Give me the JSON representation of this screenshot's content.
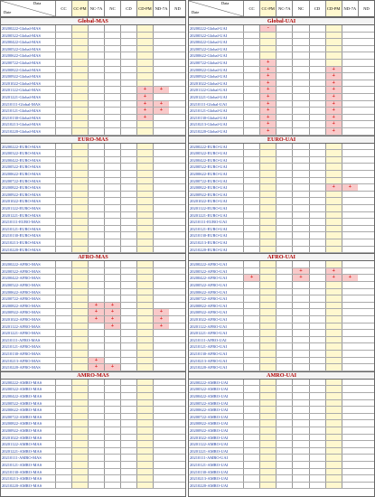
{
  "columns": [
    "CC",
    "CC-PM",
    "NC-7A",
    "NC",
    "CD",
    "CD-PM",
    "ND-7A",
    "ND"
  ],
  "corner_label_top": "Data",
  "corner_label_bottom": "Date",
  "left": [
    {
      "title": "Global-MAS",
      "rows": [
        [
          "20200222-Global-MAS",
          "",
          "",
          "",
          "",
          "",
          "",
          ""
        ],
        [
          "20200322-Global-MAS",
          "",
          "",
          "",
          "",
          "",
          "",
          ""
        ],
        [
          "20200422-Global-MAS",
          "",
          "",
          "",
          "",
          "",
          "",
          ""
        ],
        [
          "20200522-Global-MAS",
          "",
          "",
          "",
          "",
          "",
          "",
          ""
        ],
        [
          "20200622-Global-MAS",
          "",
          "",
          "",
          "",
          "",
          "",
          ""
        ],
        [
          "20200722-Global-MAS",
          "",
          "",
          "",
          "",
          "",
          "",
          ""
        ],
        [
          "20200822-Global-MAS",
          "",
          "",
          "",
          "",
          "",
          "",
          ""
        ],
        [
          "20200922-Global-MAS",
          "",
          "",
          "",
          "",
          "",
          "",
          ""
        ],
        [
          "20201022-Global-MAS",
          "",
          "",
          "",
          "",
          "",
          "",
          ""
        ],
        [
          "20201122-Global-MAS",
          "",
          "",
          "",
          "",
          "",
          "+",
          "+"
        ],
        [
          "20201221-Global-MAS",
          "",
          "",
          "",
          "",
          "",
          "+",
          ""
        ],
        [
          "20210111-Global-MAS",
          "",
          "",
          "",
          "",
          "",
          "+",
          "+"
        ],
        [
          "20210121-Global-MAS",
          "",
          "",
          "",
          "",
          "",
          "+",
          "+"
        ],
        [
          "20210130-Global-MAS",
          "",
          "",
          "",
          "",
          "",
          "+",
          ""
        ],
        [
          "20210213-Global-MAS",
          "",
          "",
          "",
          "",
          "",
          "",
          ""
        ],
        [
          "20210220-Global-MAS",
          "",
          "",
          "",
          "",
          "",
          "",
          ""
        ]
      ]
    },
    {
      "title": "EURO-MAS",
      "rows": [
        [
          "20200222-EURO-MAS",
          "",
          "",
          "",
          "",
          "",
          "",
          ""
        ],
        [
          "20200322-EURO-MAS",
          "",
          "",
          "",
          "",
          "",
          "",
          ""
        ],
        [
          "20200422-EURO-MAS",
          "",
          "",
          "",
          "",
          "",
          "",
          ""
        ],
        [
          "20200522-EURO-MAS",
          "",
          "",
          "",
          "",
          "",
          "",
          ""
        ],
        [
          "20200622-EURO-MAS",
          "",
          "",
          "",
          "",
          "",
          "",
          ""
        ],
        [
          "20200722-EURO-MAS",
          "",
          "",
          "",
          "",
          "",
          "",
          ""
        ],
        [
          "20200822-EURO-MAS",
          "",
          "",
          "",
          "",
          "",
          "",
          ""
        ],
        [
          "20200922-EURO-MAS",
          "",
          "",
          "",
          "",
          "",
          "",
          ""
        ],
        [
          "20201022-EURO-MAS",
          "",
          "",
          "",
          "",
          "",
          "",
          ""
        ],
        [
          "20201122-EURO-MAS",
          "",
          "",
          "",
          "",
          "",
          "",
          ""
        ],
        [
          "20201221-EURO-MAS",
          "",
          "",
          "",
          "",
          "",
          "",
          ""
        ],
        [
          "20210111-EURO-MAS",
          "",
          "",
          "",
          "",
          "",
          "",
          ""
        ],
        [
          "20210121-EURO-MAS",
          "",
          "",
          "",
          "",
          "",
          "",
          ""
        ],
        [
          "20210130-EURO-MAS",
          "",
          "",
          "",
          "",
          "",
          "",
          ""
        ],
        [
          "20210213-EURO-MAS",
          "",
          "",
          "",
          "",
          "",
          "",
          ""
        ],
        [
          "20210220-EURO-MAS",
          "",
          "",
          "",
          "",
          "",
          "",
          ""
        ]
      ]
    },
    {
      "title": "AFRO-MAS",
      "rows": [
        [
          "20200222-AFRO-MAS",
          "",
          "",
          "",
          "",
          "",
          "",
          ""
        ],
        [
          "20200322-AFRO-MAS",
          "",
          "",
          "",
          "",
          "",
          "",
          ""
        ],
        [
          "20200422-AFRO-MAS",
          "",
          "",
          "",
          "",
          "",
          "",
          ""
        ],
        [
          "20200522-AFRO-MAS",
          "",
          "",
          "",
          "",
          "",
          "",
          ""
        ],
        [
          "20200622-AFRO-MAS",
          "",
          "",
          "",
          "",
          "",
          "",
          ""
        ],
        [
          "20200722-AFRO-MAS",
          "",
          "",
          "",
          "",
          "",
          "",
          ""
        ],
        [
          "20200822-AFRO-MAS",
          "",
          "",
          "+",
          "+",
          "",
          "",
          ""
        ],
        [
          "20200922-AFRO-MAS",
          "",
          "",
          "+",
          "+",
          "",
          "",
          "+"
        ],
        [
          "20201022-AFRO-MAS",
          "",
          "",
          "+",
          "+",
          "",
          "",
          "+"
        ],
        [
          "20201122-AFRO-MAS",
          "",
          "",
          "",
          "+",
          "",
          "",
          "+"
        ],
        [
          "20201221-AFRO-MAS",
          "",
          "",
          "",
          "",
          "",
          "",
          ""
        ],
        [
          "20210111-AFRO-MAS",
          "",
          "",
          "",
          "",
          "",
          "",
          ""
        ],
        [
          "20210121-AFRO-MAS",
          "",
          "",
          "",
          "",
          "",
          "",
          ""
        ],
        [
          "20210130-AFRO-MAS",
          "",
          "",
          "",
          "",
          "",
          "",
          ""
        ],
        [
          "20210213-AFRO-MAS",
          "",
          "",
          "+",
          "",
          "",
          "",
          ""
        ],
        [
          "20210220-AFRO-MAS",
          "",
          "",
          "+",
          "+",
          "",
          "",
          ""
        ]
      ]
    },
    {
      "title": "AMRO-MAS",
      "rows": [
        [
          "20200222-AMRO-MAS",
          "",
          "",
          "",
          "",
          "",
          "",
          ""
        ],
        [
          "20200322-AMRO-MAS",
          "",
          "",
          "",
          "",
          "",
          "",
          ""
        ],
        [
          "20200422-AMRO-MAS",
          "",
          "",
          "",
          "",
          "",
          "",
          ""
        ],
        [
          "20200522-AMRO-MAS",
          "",
          "",
          "",
          "",
          "",
          "",
          ""
        ],
        [
          "20200622-AMRO-MAS",
          "",
          "",
          "",
          "",
          "",
          "",
          ""
        ],
        [
          "20200722-AMRO-MAS",
          "",
          "",
          "",
          "",
          "",
          "",
          ""
        ],
        [
          "20200822-AMRO-MAS",
          "",
          "",
          "",
          "",
          "",
          "",
          ""
        ],
        [
          "20200922-AMRO-MAS",
          "",
          "",
          "",
          "",
          "",
          "",
          ""
        ],
        [
          "20201022-AMRO-MAS",
          "",
          "",
          "",
          "",
          "",
          "",
          ""
        ],
        [
          "20201122-AMRO-MAS",
          "",
          "",
          "",
          "",
          "",
          "",
          ""
        ],
        [
          "20201221-AMRO-MAS",
          "",
          "",
          "",
          "",
          "",
          "",
          ""
        ],
        [
          "20210111-AMRO-MAS",
          "",
          "",
          "",
          "",
          "",
          "",
          ""
        ],
        [
          "20210121-AMRO-MAS",
          "",
          "",
          "",
          "",
          "",
          "",
          ""
        ],
        [
          "20210130-AMRO-MAS",
          "",
          "",
          "",
          "",
          "",
          "",
          ""
        ],
        [
          "20210213-AMRO-MAS",
          "",
          "",
          "",
          "",
          "",
          "",
          ""
        ],
        [
          "20210220-AMRO-MAS",
          "",
          "",
          "",
          "",
          "",
          "",
          ""
        ]
      ]
    }
  ],
  "right": [
    {
      "title": "Global-UAI",
      "rows": [
        [
          "20200222-Global-UAI",
          "",
          "-",
          "",
          "",
          "",
          "",
          ""
        ],
        [
          "20200322-Global-UAI",
          "",
          "",
          "",
          "",
          "",
          "",
          ""
        ],
        [
          "20200422-Global-UAI",
          "",
          "",
          "",
          "",
          "",
          "",
          ""
        ],
        [
          "20200522-Global-UAI",
          "",
          "",
          "",
          "",
          "",
          "",
          ""
        ],
        [
          "20200622-Global-UAI",
          "",
          "",
          "",
          "",
          "",
          "",
          ""
        ],
        [
          "20200722-Global-UAI",
          "",
          "+",
          "",
          "",
          "",
          "",
          ""
        ],
        [
          "20200822-Global-UAI",
          "",
          "+",
          "",
          "",
          "",
          "+",
          ""
        ],
        [
          "20200922-Global-UAI",
          "",
          "+",
          "",
          "",
          "",
          "+",
          ""
        ],
        [
          "20201022-Global-UAI",
          "",
          "+",
          "",
          "",
          "",
          "+",
          ""
        ],
        [
          "20201122-Global-UAI",
          "",
          "+",
          "",
          "",
          "",
          "+",
          ""
        ],
        [
          "20201221-Global-UAI",
          "",
          "+",
          "",
          "",
          "",
          "+",
          ""
        ],
        [
          "20210111-Global-UAI",
          "",
          "+",
          "",
          "",
          "",
          "+",
          ""
        ],
        [
          "20210121-Global-UAI",
          "",
          "+",
          "",
          "",
          "",
          "+",
          ""
        ],
        [
          "20210130-Global-UAI",
          "",
          "+",
          "",
          "",
          "",
          "+",
          ""
        ],
        [
          "20210213-Global-UAI",
          "",
          "+",
          "",
          "",
          "",
          "+",
          ""
        ],
        [
          "20210220-Global-UAI",
          "",
          "+",
          "",
          "",
          "",
          "+",
          ""
        ]
      ]
    },
    {
      "title": "EURO-UAI",
      "rows": [
        [
          "20200222-EURO-UAI",
          "",
          "",
          "",
          "",
          "",
          "",
          ""
        ],
        [
          "20200322-EURO-UAI",
          "",
          "",
          "",
          "",
          "",
          "",
          ""
        ],
        [
          "20200422-EURO-UAI",
          "",
          "",
          "",
          "",
          "",
          "",
          ""
        ],
        [
          "20200522-EURO-UAI",
          "",
          "",
          "",
          "",
          "",
          "",
          ""
        ],
        [
          "20200622-EURO-UAI",
          "",
          "",
          "",
          "",
          "",
          "",
          ""
        ],
        [
          "20200722-EURO-UAI",
          "",
          "",
          "",
          "",
          "",
          "",
          ""
        ],
        [
          "20200822-EURO-UAI",
          "",
          "",
          "",
          "",
          "",
          "+",
          "+"
        ],
        [
          "20200922-EURO-UAI",
          "",
          "",
          "",
          "",
          "",
          "",
          ""
        ],
        [
          "20201022-EURO-UAI",
          "",
          "",
          "",
          "",
          "",
          "",
          ""
        ],
        [
          "20201122-EURO-UAI",
          "",
          "",
          "",
          "",
          "",
          "",
          ""
        ],
        [
          "20201221-EURO-UAI",
          "",
          "",
          "",
          "",
          "",
          "",
          ""
        ],
        [
          "20210111-EURO-UAI",
          "",
          "",
          "",
          "",
          "",
          "",
          ""
        ],
        [
          "20210121-EURO-UAI",
          "",
          "",
          "",
          "",
          "",
          "",
          ""
        ],
        [
          "20210130-EURO-UAI",
          "",
          "",
          "",
          "",
          "",
          "",
          ""
        ],
        [
          "20210213-EURO-UAI",
          "",
          "",
          "",
          "",
          "",
          "",
          ""
        ],
        [
          "20210220-EURO-UAI",
          "",
          "",
          "",
          "",
          "",
          "",
          ""
        ]
      ]
    },
    {
      "title": "AFRO-UAI",
      "rows": [
        [
          "20200222-AFRO-UAI",
          "",
          "",
          "",
          "",
          "",
          "",
          ""
        ],
        [
          "20200322-AFRO-UAI",
          "",
          "",
          "",
          "+",
          "",
          "+",
          ""
        ],
        [
          "20200422-AFRO-UAI",
          "+",
          "",
          "",
          "+",
          "",
          "+",
          "+"
        ],
        [
          "20200522-AFRO-UAI",
          "",
          "",
          "",
          "",
          "",
          "",
          ""
        ],
        [
          "20200622-AFRO-UAI",
          "",
          "",
          "",
          "",
          "",
          "",
          ""
        ],
        [
          "20200722-AFRO-UAI",
          "",
          "",
          "",
          "",
          "",
          "",
          ""
        ],
        [
          "20200822-AFRO-UAI",
          "",
          "",
          "",
          "",
          "",
          "",
          ""
        ],
        [
          "20200922-AFRO-UAI",
          "",
          "",
          "",
          "",
          "",
          "",
          ""
        ],
        [
          "20201022-AFRO-UAI",
          "",
          "",
          "",
          "",
          "",
          "",
          ""
        ],
        [
          "20201122-AFRO-UAI",
          "",
          "",
          "",
          "",
          "",
          "",
          ""
        ],
        [
          "20201221-AFRO-UAI",
          "",
          "",
          "",
          "",
          "",
          "",
          ""
        ],
        [
          "20210111-AFRO-UAI",
          "",
          "",
          "",
          "",
          "",
          "",
          ""
        ],
        [
          "20210121-AFRO-UAI",
          "",
          "",
          "",
          "",
          "",
          "",
          ""
        ],
        [
          "20210130-AFRO-UAI",
          "",
          "",
          "",
          "",
          "",
          "",
          ""
        ],
        [
          "20210213-AFRO-UAI",
          "",
          "",
          "",
          "",
          "",
          "",
          ""
        ],
        [
          "20210220-AFRO-UAI",
          "",
          "",
          "",
          "",
          "",
          "",
          ""
        ]
      ]
    },
    {
      "title": "AMRO-UAI",
      "rows": [
        [
          "20200222-AMRO-UAI",
          "",
          "",
          "",
          "",
          "",
          "",
          ""
        ],
        [
          "20200322-AMRO-UAI",
          "",
          "",
          "",
          "",
          "",
          "",
          ""
        ],
        [
          "20200422-AMRO-UAI",
          "",
          "",
          "",
          "",
          "",
          "",
          ""
        ],
        [
          "20200522-AMRO-UAI",
          "",
          "",
          "",
          "",
          "",
          "",
          ""
        ],
        [
          "20200622-AMRO-UAI",
          "",
          "",
          "",
          "",
          "",
          "",
          ""
        ],
        [
          "20200722-AMRO-UAI",
          "",
          "",
          "",
          "",
          "",
          "",
          ""
        ],
        [
          "20200822-AMRO-UAI",
          "",
          "",
          "",
          "",
          "",
          "",
          ""
        ],
        [
          "20200922-AMRO-UAI",
          "",
          "",
          "",
          "",
          "",
          "",
          ""
        ],
        [
          "20201022-AMRO-UAI",
          "",
          "",
          "",
          "",
          "",
          "",
          ""
        ],
        [
          "20201122-AMRO-UAI",
          "",
          "",
          "",
          "",
          "",
          "",
          ""
        ],
        [
          "20201221-AMRO-UAI",
          "",
          "",
          "",
          "",
          "",
          "",
          ""
        ],
        [
          "20210111-AMRO-UAI",
          "",
          "",
          "",
          "",
          "",
          "",
          ""
        ],
        [
          "20210121-AMRO-UAI",
          "",
          "",
          "",
          "",
          "",
          "",
          ""
        ],
        [
          "20210130-AMRO-UAI",
          "",
          "",
          "",
          "",
          "",
          "",
          ""
        ],
        [
          "20210213-AMRO-UAI",
          "",
          "",
          "",
          "",
          "",
          "",
          ""
        ],
        [
          "20210220-AMRO-UAI",
          "",
          "",
          "",
          "",
          "",
          "",
          ""
        ]
      ]
    }
  ]
}
